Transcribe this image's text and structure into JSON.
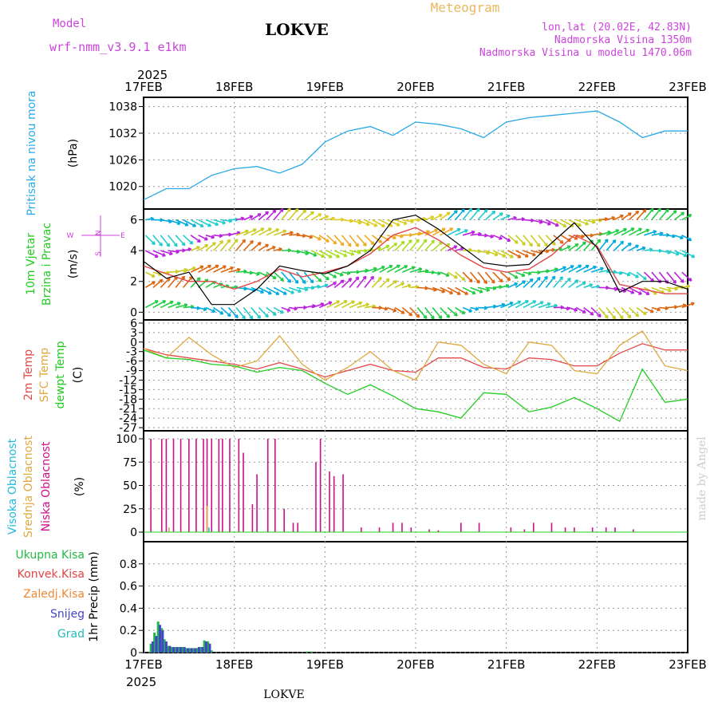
{
  "colors": {
    "magenta": "#cc44dd",
    "gold": "#e8b860",
    "pressure": "#2aa9e8",
    "temp2m": "#e24a4a",
    "sfc": "#e0a840",
    "dewpt": "#22cc22",
    "high_cloud": "#22bbdd",
    "mid_cloud": "#e0a840",
    "low_cloud": "#cc1188",
    "precip_total": "#22bb44",
    "precip_conv": "#e24444",
    "precip_frz": "#ee8833",
    "snow": "#4444cc",
    "grad": "#22bbbb",
    "signature": "#cccccc"
  },
  "header": {
    "model_label": "Model",
    "model_name": "wrf-nmm_v3.9.1 e1km",
    "station": "LOKVE",
    "title": "Meteogram",
    "lonlat": "lon,lat (20.02E, 42.83N)",
    "altitude": "Nadmorska Visina 1350m",
    "model_altitude": "Nadmorska Visina u modelu 1470.06m"
  },
  "time_axis": {
    "year": "2025",
    "dates": [
      "17FEB",
      "18FEB",
      "19FEB",
      "20FEB",
      "21FEB",
      "22FEB",
      "23FEB"
    ]
  },
  "footer": {
    "station": "LOKVE",
    "signature": "made by Angel"
  },
  "wind_legend": {
    "n": "N",
    "w": "W",
    "e": "E",
    "s": "S"
  },
  "chart_data": [
    {
      "type": "line",
      "panel": "pressure",
      "ylabel_1": "Pritisak na nivou mora",
      "ylabel_2": "(hPa)",
      "ylim": [
        1016,
        1039
      ],
      "yticks": [
        "1038",
        "1032",
        "1026",
        "1020"
      ],
      "grid": true,
      "x": [
        0,
        0.25,
        0.5,
        0.75,
        1,
        1.25,
        1.5,
        1.75,
        2,
        2.25,
        2.5,
        2.75,
        3,
        3.25,
        3.5,
        3.75,
        4,
        4.25,
        4.5,
        4.75,
        5,
        5.25,
        5.5,
        5.75,
        6
      ],
      "values": [
        1017,
        1019.5,
        1019.5,
        1022.5,
        1024,
        1024.5,
        1023,
        1025,
        1030,
        1032.5,
        1033.5,
        1031.5,
        1034.5,
        1034,
        1033,
        1031,
        1034.5,
        1035.5,
        1036,
        1036.5,
        1037,
        1034.5,
        1031,
        1032.5,
        1032.5
      ]
    },
    {
      "type": "line",
      "panel": "wind",
      "ylabel_1": "10m Vjetar",
      "ylabel_2": "Brzina i Pravac",
      "ylabel_3": "(m/s)",
      "ylim": [
        0,
        7
      ],
      "yticks": [
        "6",
        "4",
        "2",
        "0"
      ],
      "grid": true,
      "series": [
        {
          "x": [
            0,
            0.25,
            0.5,
            0.75,
            1,
            1.25,
            1.5,
            1.75,
            2,
            2.25,
            2.5,
            2.75,
            3,
            3.25,
            3.5,
            3.75,
            4,
            4.25,
            4.5,
            4.75,
            5,
            5.25,
            5.5,
            5.75,
            6
          ],
          "values": [
            3.3,
            2.2,
            2.6,
            0.5,
            0.5,
            1.5,
            3,
            2.7,
            2.5,
            3,
            4,
            6,
            6.3,
            5.4,
            4.3,
            3.2,
            3,
            3.1,
            4.5,
            5.8,
            4.2,
            1.3,
            2,
            2,
            1.5
          ]
        },
        {
          "x": [
            0,
            0.25,
            0.5,
            0.75,
            1,
            1.25,
            1.5,
            1.75,
            2,
            2.25,
            2.5,
            2.75,
            3,
            3.25,
            3.5,
            3.75,
            4,
            4.25,
            4.5,
            4.75,
            5,
            5.25,
            5.5,
            5.75,
            6
          ],
          "values": [
            3,
            2.5,
            2,
            2,
            1.5,
            2,
            2.8,
            2.3,
            2.6,
            3,
            3.8,
            5,
            5.5,
            4.7,
            3.7,
            2.9,
            2.6,
            2.8,
            3.7,
            5,
            4.3,
            1.8,
            1.5,
            1.2,
            1.2
          ]
        }
      ]
    },
    {
      "type": "line",
      "panel": "temperature",
      "ylabel_1": "2m Temp",
      "ylabel_2": "SFC Temp",
      "ylabel_3": "dewpt Temp",
      "ylabel_4": "(C)",
      "ylim": [
        -27,
        6
      ],
      "yticks": [
        "6",
        "3",
        "0",
        "-3",
        "-6",
        "-9",
        "-12",
        "-15",
        "-18",
        "-21",
        "-24",
        "-27"
      ],
      "grid": true,
      "series": [
        {
          "name": "2m Temp",
          "x": [
            0,
            0.25,
            0.5,
            0.75,
            1,
            1.25,
            1.5,
            1.75,
            2,
            2.25,
            2.5,
            2.75,
            3,
            3.25,
            3.5,
            3.75,
            4,
            4.25,
            4.5,
            4.75,
            5,
            5.25,
            5.5,
            5.75,
            6
          ],
          "values": [
            -2,
            -4,
            -5,
            -6,
            -7,
            -8.5,
            -6.5,
            -8.5,
            -11,
            -9,
            -7,
            -9,
            -9.5,
            -5,
            -5,
            -8,
            -8.5,
            -5,
            -5.5,
            -7.5,
            -7.5,
            -3.5,
            -0.5,
            -2.5,
            -2.5
          ]
        },
        {
          "name": "SFC Temp",
          "x": [
            0,
            0.25,
            0.5,
            0.75,
            1,
            1.25,
            1.5,
            1.75,
            2,
            2.25,
            2.5,
            2.75,
            3,
            3.25,
            3.5,
            3.75,
            4,
            4.25,
            4.5,
            4.75,
            5,
            5.25,
            5.5,
            5.75,
            6
          ],
          "values": [
            -2,
            -5,
            1.5,
            -4,
            -8,
            -6,
            2,
            -7,
            -12,
            -8,
            -3,
            -9,
            -12,
            0,
            -1,
            -7,
            -10,
            0,
            -1,
            -9,
            -10,
            -1,
            3.5,
            -7.5,
            -9
          ]
        },
        {
          "name": "dewpt Temp",
          "x": [
            0,
            0.25,
            0.5,
            0.75,
            1,
            1.25,
            1.5,
            1.75,
            2,
            2.25,
            2.5,
            2.75,
            3,
            3.25,
            3.5,
            3.75,
            4,
            4.25,
            4.5,
            4.75,
            5,
            5.25,
            5.5,
            5.75,
            6
          ],
          "values": [
            -2.5,
            -5,
            -5.5,
            -7,
            -7.5,
            -9.5,
            -8,
            -9,
            -13,
            -16.5,
            -13.5,
            -17,
            -21,
            -22,
            -24,
            -16,
            -16.5,
            -22,
            -20.5,
            -17.5,
            -21,
            -25,
            -8.5,
            -19,
            -18
          ]
        }
      ]
    },
    {
      "type": "bar",
      "panel": "cloud",
      "ylabel_1": "Visoka Oblacnost",
      "ylabel_2": "Srednja Oblacnost",
      "ylabel_3": "Niska Oblacnost",
      "ylabel_4": "(%)",
      "ylim": [
        0,
        100
      ],
      "yticks": [
        "100",
        "75",
        "50",
        "25",
        "0"
      ],
      "grid": true,
      "series": [
        {
          "name": "Niska Oblacnost",
          "x": [
            0.08,
            0.2,
            0.25,
            0.33,
            0.41,
            0.5,
            0.58,
            0.66,
            0.7,
            0.75,
            0.83,
            0.87,
            0.95,
            1.05,
            1.1,
            1.2,
            1.25,
            1.37,
            1.45,
            1.55,
            1.65,
            1.7,
            1.9,
            1.95,
            2.05,
            2.1,
            2.2,
            2.4,
            2.6,
            2.75,
            2.85,
            2.95,
            3.15,
            3.25,
            3.5,
            3.7,
            4.05,
            4.2,
            4.3,
            4.5,
            4.65,
            4.75,
            4.95,
            5.1,
            5.2,
            5.4
          ],
          "values": [
            100,
            100,
            100,
            100,
            100,
            100,
            100,
            100,
            100,
            100,
            100,
            100,
            100,
            100,
            85,
            30,
            62,
            100,
            100,
            25,
            10,
            10,
            75,
            100,
            65,
            60,
            62,
            5,
            5,
            10,
            10,
            5,
            3,
            2,
            10,
            10,
            5,
            3,
            10,
            10,
            5,
            5,
            5,
            5,
            5,
            3
          ]
        },
        {
          "name": "Srednja Oblacnost",
          "x": [
            0.28,
            0.7
          ],
          "values": [
            5,
            28
          ]
        },
        {
          "name": "Visoka Oblacnost",
          "x": [
            0.72
          ],
          "values": [
            5
          ]
        }
      ]
    },
    {
      "type": "bar",
      "panel": "precip",
      "ylabel_1": "Ukupna Kisa",
      "ylabel_2": "Konvek.Kisa",
      "ylabel_3": "Zaledj.Kisa",
      "ylabel_4": "Snijeg",
      "ylabel_5": "Grad",
      "ylabel_6": "1hr Precip (mm)",
      "ylim": [
        0,
        1.0
      ],
      "yticks": [
        "0.8",
        "0.6",
        "0.4",
        "0.2",
        "0"
      ],
      "grid": true,
      "series": [
        {
          "name": "Ukupna Kisa",
          "x": [
            0.08,
            0.12,
            0.16,
            0.2,
            0.23,
            0.27,
            0.31,
            0.35,
            0.39,
            0.43,
            0.47,
            0.51,
            0.55,
            0.59,
            0.63,
            0.67,
            0.71,
            0.75,
            1.8,
            1.85
          ],
          "values": [
            0.08,
            0.18,
            0.28,
            0.22,
            0.12,
            0.06,
            0.05,
            0.05,
            0.05,
            0.05,
            0.04,
            0.04,
            0.04,
            0.04,
            0.05,
            0.11,
            0.1,
            0.02,
            0.01,
            0.01
          ]
        },
        {
          "name": "Snijeg",
          "x": [
            0.1,
            0.14,
            0.18,
            0.21,
            0.25,
            0.29,
            0.33,
            0.37,
            0.41,
            0.45,
            0.49,
            0.53,
            0.57,
            0.61,
            0.65,
            0.69,
            0.73
          ],
          "values": [
            0.1,
            0.15,
            0.25,
            0.2,
            0.1,
            0.06,
            0.05,
            0.05,
            0.05,
            0.05,
            0.04,
            0.04,
            0.04,
            0.05,
            0.05,
            0.1,
            0.08
          ]
        }
      ]
    }
  ]
}
